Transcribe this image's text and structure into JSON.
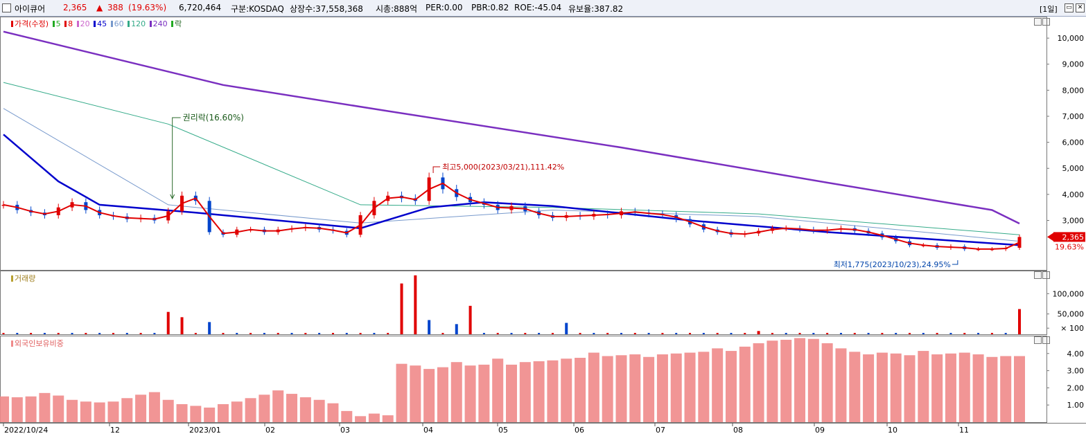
{
  "header": {
    "name": "아이큐어",
    "price": "2,365",
    "change_arrow": "▲",
    "change": "388",
    "change_pct": "(19.63%)",
    "volume": "6,720,464",
    "market": "구분:KOSDAQ",
    "listed_shares": "상장수:37,558,368",
    "market_cap": "시총:888억",
    "per": "PER:0.00",
    "pbr": "PBR:0.82",
    "roe": "ROE:-45.04",
    "reserve_ratio": "유보율:387.82",
    "period": "[1일]"
  },
  "colors": {
    "up": "#e00000",
    "down": "#0044cc",
    "ma5": "#22aa22",
    "ma8": "#e00000",
    "ma20": "#cc66cc",
    "ma45": "#0000cc",
    "ma60": "#7799cc",
    "ma120": "#33aa88",
    "ma240": "#7a2fc0",
    "foreign": "#f08a8a"
  },
  "legend": {
    "price": "가격(수정)",
    "ma": [
      "5",
      "8",
      "20",
      "45",
      "60",
      "120",
      "240"
    ],
    "ex": "락"
  },
  "annotations": {
    "rights": "권리락(16.60%)",
    "high": "최고5,000(2023/03/21),111.42%",
    "low": "최저1,775(2023/10/23),24.95%",
    "last_price": "2,365",
    "last_pct": "19.63%"
  },
  "volume_label": "거래량",
  "foreign_label": "외국인보유비중",
  "chart_data": [
    {
      "type": "line",
      "title": "가격(수정)",
      "x_labels": [
        "2022/10/24",
        "12",
        "2023/01",
        "02",
        "03",
        "04",
        "05",
        "06",
        "07",
        "08",
        "09",
        "10",
        "11"
      ],
      "y_ticks": [
        3000,
        4000,
        5000,
        6000,
        7000,
        8000,
        9000,
        10000
      ],
      "ylim": [
        1100,
        10800
      ],
      "close_weekly": [
        3600,
        3400,
        3300,
        3200,
        3500,
        3700,
        3400,
        3200,
        3150,
        3050,
        3100,
        3000,
        3350,
        3950,
        3750,
        2550,
        2450,
        2650,
        2650,
        2550,
        2650,
        2700,
        2750,
        2650,
        2600,
        2450,
        3200,
        3750,
        3950,
        3850,
        3750,
        4650,
        4200,
        3900,
        3700,
        3600,
        3400,
        3550,
        3350,
        3200,
        3100,
        3200,
        3150,
        3250,
        3200,
        3350,
        3300,
        3250,
        3200,
        3050,
        2850,
        2650,
        2550,
        2450,
        2500,
        2600,
        2700,
        2700,
        2650,
        2600,
        2650,
        2700,
        2600,
        2500,
        2350,
        2200,
        2050,
        2050,
        1950,
        2000,
        1900,
        1900,
        1900,
        1950,
        2365
      ],
      "series": [
        {
          "name": "240",
          "points": [
            [
              0,
              10250
            ],
            [
              16,
              8200
            ],
            [
              28,
              7200
            ],
            [
              45,
              5800
            ],
            [
              60,
              4450
            ],
            [
              72,
              3400
            ],
            [
              74,
              2880
            ]
          ]
        },
        {
          "name": "120",
          "points": [
            [
              0,
              8300
            ],
            [
              12,
              6700
            ],
            [
              26,
              3600
            ],
            [
              40,
              3500
            ],
            [
              55,
              3250
            ],
            [
              74,
              2450
            ]
          ]
        },
        {
          "name": "60",
          "points": [
            [
              0,
              7300
            ],
            [
              12,
              3600
            ],
            [
              26,
              2900
            ],
            [
              40,
              3400
            ],
            [
              55,
              3150
            ],
            [
              74,
              2200
            ]
          ]
        },
        {
          "name": "45",
          "points": [
            [
              0,
              6300
            ],
            [
              4,
              4500
            ],
            [
              7,
              3600
            ],
            [
              14,
              3300
            ],
            [
              26,
              2700
            ],
            [
              31,
              3500
            ],
            [
              35,
              3700
            ],
            [
              40,
              3550
            ],
            [
              50,
              3000
            ],
            [
              60,
              2550
            ],
            [
              74,
              2050
            ]
          ]
        }
      ],
      "annotations": [
        "권리락(16.60%)",
        "최고5,000(2023/03/21),111.42%",
        "최저1,775(2023/10/23),24.95%"
      ]
    },
    {
      "type": "bar",
      "title": "거래량",
      "y_ticks": [
        "100,000",
        "50,000",
        "× 100"
      ],
      "ylim": [
        0,
        155000
      ],
      "spikes": [
        {
          "week": 12,
          "value": 55000
        },
        {
          "week": 13,
          "value": 42000
        },
        {
          "week": 15,
          "value": 30000
        },
        {
          "week": 29,
          "value": 125000
        },
        {
          "week": 30,
          "value": 145000
        },
        {
          "week": 31,
          "value": 35000
        },
        {
          "week": 33,
          "value": 25000
        },
        {
          "week": 34,
          "value": 70000
        },
        {
          "week": 41,
          "value": 28000
        },
        {
          "week": 55,
          "value": 8000
        },
        {
          "week": 74,
          "value": 62000
        }
      ]
    },
    {
      "type": "bar",
      "title": "외국인보유비중",
      "y_ticks": [
        "1.00",
        "2.00",
        "3.00",
        "4.00"
      ],
      "ylim": [
        0,
        5.0
      ],
      "weekly": [
        1.5,
        1.45,
        1.5,
        1.7,
        1.55,
        1.3,
        1.2,
        1.15,
        1.2,
        1.4,
        1.6,
        1.75,
        1.3,
        1.05,
        0.95,
        0.85,
        1.05,
        1.2,
        1.4,
        1.6,
        1.85,
        1.65,
        1.45,
        1.3,
        1.1,
        0.65,
        0.35,
        0.5,
        0.4,
        3.4,
        3.3,
        3.1,
        3.2,
        3.5,
        3.3,
        3.35,
        3.7,
        3.35,
        3.5,
        3.55,
        3.6,
        3.7,
        3.75,
        4.05,
        3.85,
        3.9,
        3.95,
        3.8,
        3.95,
        4.0,
        4.05,
        4.1,
        4.3,
        4.15,
        4.4,
        4.6,
        4.75,
        4.8,
        4.9,
        4.85,
        4.6,
        4.3,
        4.1,
        3.95,
        4.05,
        4.0,
        3.9,
        4.15,
        3.95,
        4.0,
        4.05,
        3.95,
        3.8,
        3.85,
        3.85
      ]
    }
  ]
}
